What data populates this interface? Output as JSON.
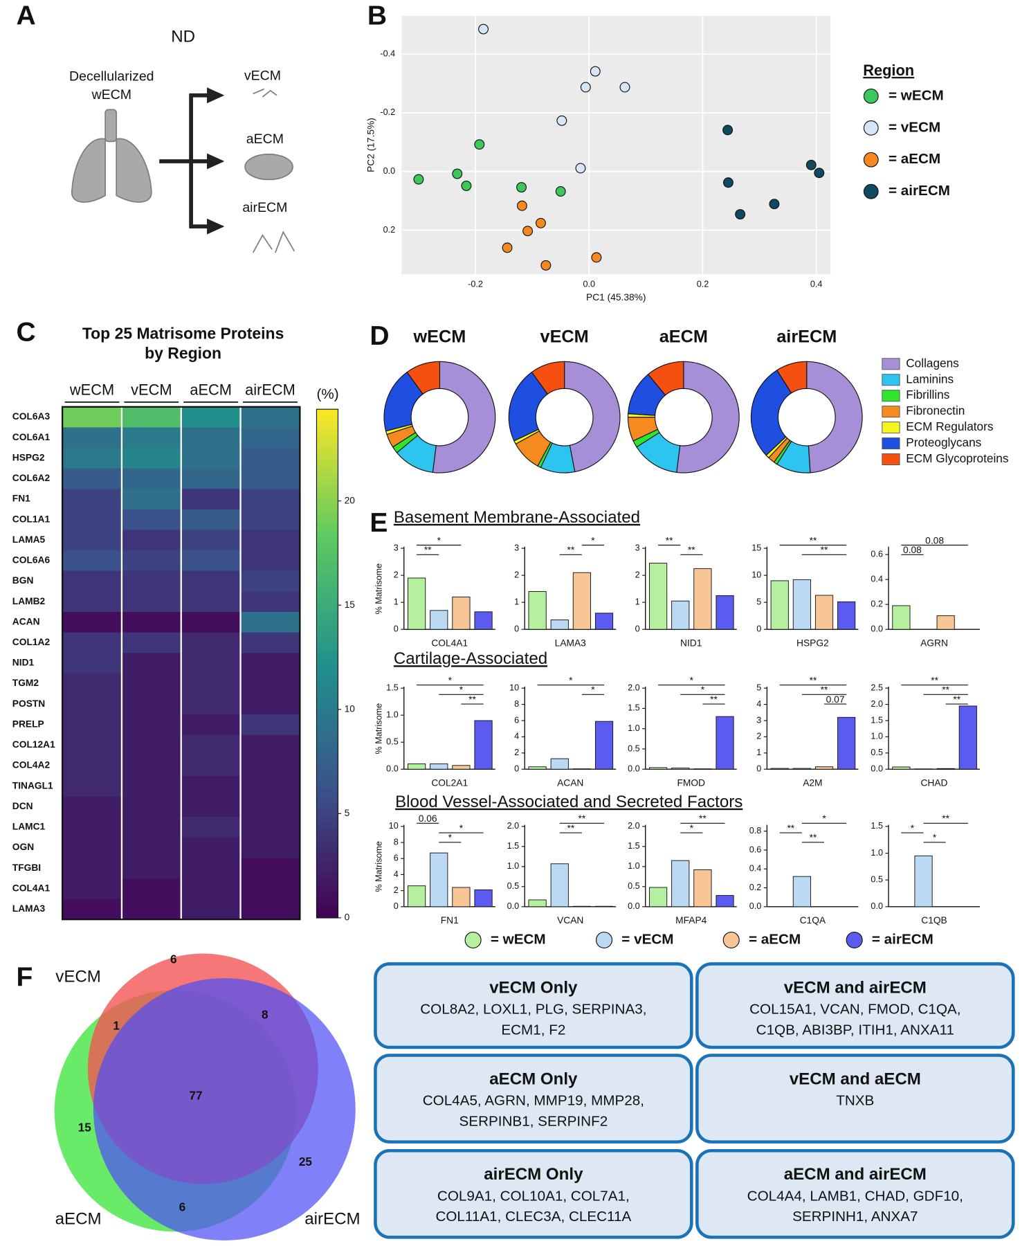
{
  "panel_labels": [
    "A",
    "B",
    "C",
    "D",
    "E",
    "F"
  ],
  "schematic": {
    "condition": "ND",
    "source": [
      "Decellularized",
      "wECM"
    ],
    "targets": [
      "vECM",
      "aECM",
      "airECM"
    ]
  },
  "chart_data": [
    {
      "type": "scatter",
      "xlabel": "PC1 (45.38%)",
      "ylabel": "PC2 (17.5%)",
      "xlim": [
        -0.33,
        0.425
      ],
      "ylim": [
        -0.53,
        0.35
      ],
      "yreverse": true,
      "xticks": [
        -0.2,
        {
          "value": 0,
          "label": "0.0"
        },
        0.2,
        0.4
      ],
      "yticks": [
        -0.4,
        -0.2,
        {
          "value": 0,
          "label": "0.0"
        },
        0.2
      ],
      "grid": true,
      "legend_title": "Region",
      "series": [
        {
          "name": "= wECM",
          "color": "#3cc85a",
          "x": [
            -0.193,
            -0.3,
            -0.232,
            -0.216,
            -0.119,
            -0.05
          ],
          "y": [
            -0.092,
            0.027,
            0.008,
            0.049,
            0.054,
            0.068
          ]
        },
        {
          "name": "= vECM",
          "color": "#d4e6f8",
          "x": [
            -0.186,
            0.011,
            -0.006,
            0.063,
            -0.048,
            -0.015
          ],
          "y": [
            -0.485,
            -0.341,
            -0.287,
            -0.287,
            -0.173,
            -0.011
          ]
        },
        {
          "name": "= aECM",
          "color": "#f5891f",
          "x": [
            -0.118,
            -0.085,
            -0.108,
            -0.144,
            -0.076,
            0.013
          ],
          "y": [
            0.117,
            0.176,
            0.203,
            0.26,
            0.32,
            0.293
          ]
        },
        {
          "name": "= airECM",
          "color": "#0f4a60",
          "x": [
            0.244,
            0.245,
            0.266,
            0.326,
            0.391,
            0.405
          ],
          "y": [
            -0.141,
            0.038,
            0.146,
            0.111,
            -0.022,
            0.005
          ]
        }
      ]
    },
    {
      "type": "heatmap",
      "title": [
        "Top 25 Matrisome Proteins",
        "by Region"
      ],
      "columns": [
        "wECM",
        "vECM",
        "aECM",
        "airECM"
      ],
      "rows": [
        "COL6A3",
        "COL6A1",
        "HSPG2",
        "COL6A2",
        "FN1",
        "COL1A1",
        "LAMA5",
        "COL6A6",
        "BGN",
        "LAMB2",
        "ACAN",
        "COL1A2",
        "NID1",
        "TGM2",
        "POSTN",
        "PRELP",
        "COL12A1",
        "COL4A2",
        "TINAGL1",
        "DCN",
        "LAMC1",
        "OGN",
        "TFGBI",
        "COL4A1",
        "LAMA3"
      ],
      "values": [
        [
          19,
          17,
          12,
          9
        ],
        [
          9,
          10,
          9,
          8
        ],
        [
          10,
          11,
          9,
          7
        ],
        [
          7,
          8,
          8,
          7
        ],
        [
          5,
          9,
          4,
          5
        ],
        [
          5,
          6,
          7,
          5
        ],
        [
          5,
          4,
          5,
          4
        ],
        [
          6,
          5,
          6,
          4
        ],
        [
          4,
          4,
          4,
          5
        ],
        [
          4,
          4,
          4,
          4
        ],
        [
          1,
          1,
          1,
          9
        ],
        [
          4,
          4,
          3,
          4
        ],
        [
          4,
          2,
          3,
          2
        ],
        [
          3,
          2,
          3,
          2
        ],
        [
          3,
          2,
          3,
          2
        ],
        [
          3,
          2,
          2,
          4
        ],
        [
          3,
          2,
          3,
          2
        ],
        [
          3,
          2,
          3,
          2
        ],
        [
          3,
          2,
          2,
          2
        ],
        [
          2,
          2,
          2,
          2
        ],
        [
          2,
          2,
          3,
          2
        ],
        [
          2,
          2,
          2,
          2
        ],
        [
          2,
          2,
          2,
          1
        ],
        [
          2,
          1,
          2,
          1
        ],
        [
          1,
          1,
          2,
          1
        ]
      ],
      "clim": [
        0,
        24.4
      ],
      "cticks": [
        0,
        5,
        10,
        15,
        20
      ],
      "colorbar_label": "(%)"
    },
    {
      "type": "donut",
      "categories": [
        "Collagens",
        "Laminins",
        "Fibrillins",
        "Fibronectin",
        "ECM Regulators",
        "Proteoglycans",
        "ECM Glycoproteins"
      ],
      "colors": [
        "#a68fd6",
        "#2ec4f0",
        "#2ee62e",
        "#f58a1f",
        "#f5f51f",
        "#1f4fe0",
        "#f5500f"
      ],
      "series": [
        {
          "name": "wECM",
          "values": [
            52,
            12,
            2,
            4,
            1,
            19,
            10
          ]
        },
        {
          "name": "vECM",
          "values": [
            47,
            10,
            1,
            9,
            1,
            22,
            10
          ]
        },
        {
          "name": "aECM",
          "values": [
            52,
            14,
            2,
            7,
            1,
            13,
            11
          ]
        },
        {
          "name": "airECM",
          "values": [
            49,
            10,
            1,
            2,
            1,
            28,
            9
          ]
        }
      ]
    },
    {
      "type": "bar",
      "ylabel": "% Matrisome",
      "xlabel": "COL4A1",
      "values": [
        1.9,
        0.7,
        1.2,
        0.65
      ],
      "ylim": [
        0,
        3
      ],
      "yticks": [
        0,
        1,
        2,
        3
      ],
      "annotations": [
        {
          "text": "*",
          "between": [
            0,
            2
          ]
        },
        {
          "text": "**",
          "between": [
            0,
            1
          ]
        }
      ]
    },
    {
      "type": "bar",
      "xlabel": "LAMA3",
      "values": [
        1.4,
        0.35,
        2.1,
        0.6
      ],
      "ylim": [
        0,
        3
      ],
      "yticks": [
        0,
        1,
        2,
        3
      ],
      "annotations": [
        {
          "text": "*",
          "between": [
            2,
            3
          ]
        },
        {
          "text": "**",
          "between": [
            1,
            2
          ]
        }
      ]
    },
    {
      "type": "bar",
      "xlabel": "NID1",
      "values": [
        2.45,
        1.05,
        2.25,
        1.25
      ],
      "ylim": [
        0,
        3
      ],
      "yticks": [
        0,
        1,
        2,
        3
      ],
      "annotations": [
        {
          "text": "**",
          "between": [
            0,
            1
          ]
        },
        {
          "text": "**",
          "between": [
            1,
            2
          ]
        }
      ]
    },
    {
      "type": "bar",
      "xlabel": "HSPG2",
      "values": [
        9,
        9.2,
        6.3,
        5.1
      ],
      "ylim": [
        0,
        15
      ],
      "yticks": [
        0,
        5,
        10,
        15
      ],
      "annotations": [
        {
          "text": "**",
          "between": [
            0,
            3
          ]
        },
        {
          "text": "**",
          "between": [
            1,
            3
          ]
        }
      ]
    },
    {
      "type": "bar",
      "xlabel": "AGRN",
      "values": [
        0.19,
        0,
        0.11,
        0
      ],
      "ylim": [
        0,
        0.65
      ],
      "yticks": [
        {
          "value": 0,
          "label": "0.0"
        },
        0.2,
        0.4,
        0.6
      ],
      "annotations": [
        {
          "text": "0.08",
          "between": [
            0,
            3
          ]
        },
        {
          "text": "0.08",
          "between": [
            0,
            1
          ]
        }
      ]
    },
    {
      "type": "bar",
      "ylabel": "% Matrisome",
      "xlabel": "COL2A1",
      "values": [
        0.1,
        0.1,
        0.07,
        0.9
      ],
      "ylim": [
        0,
        1.5
      ],
      "yticks": [
        {
          "value": 0,
          "label": "0.0"
        },
        0.5,
        {
          "value": 1,
          "label": "1.0"
        },
        1.5
      ],
      "annotations": [
        {
          "text": "*",
          "between": [
            0,
            3
          ]
        },
        {
          "text": "*",
          "between": [
            1,
            3
          ]
        },
        {
          "text": "**",
          "between": [
            2,
            3
          ]
        }
      ]
    },
    {
      "type": "bar",
      "xlabel": "ACAN",
      "values": [
        0.3,
        1.3,
        0.05,
        5.9
      ],
      "ylim": [
        0,
        10
      ],
      "yticks": [
        0,
        2,
        4,
        6,
        8,
        10
      ],
      "annotations": [
        {
          "text": "*",
          "between": [
            0,
            3
          ]
        },
        {
          "text": "*",
          "between": [
            2,
            3
          ]
        }
      ]
    },
    {
      "type": "bar",
      "xlabel": "FMOD",
      "values": [
        0.04,
        0.03,
        0.01,
        1.3
      ],
      "ylim": [
        0,
        2
      ],
      "yticks": [
        {
          "value": 0,
          "label": "0.0"
        },
        0.5,
        {
          "value": 1,
          "label": "1.0"
        },
        1.5,
        {
          "value": 2,
          "label": "2.0"
        }
      ],
      "annotations": [
        {
          "text": "*",
          "between": [
            0,
            3
          ]
        },
        {
          "text": "*",
          "between": [
            1,
            3
          ]
        },
        {
          "text": "**",
          "between": [
            2,
            3
          ]
        }
      ]
    },
    {
      "type": "bar",
      "xlabel": "A2M",
      "values": [
        0.05,
        0.05,
        0.15,
        3.2
      ],
      "ylim": [
        0,
        5
      ],
      "yticks": [
        0,
        1,
        2,
        3,
        4,
        5
      ],
      "annotations": [
        {
          "text": "**",
          "between": [
            0,
            3
          ]
        },
        {
          "text": "**",
          "between": [
            1,
            3
          ]
        },
        {
          "text": "0.07",
          "between": [
            2,
            3
          ]
        }
      ]
    },
    {
      "type": "bar",
      "xlabel": "CHAD",
      "values": [
        0.07,
        0.01,
        0.02,
        1.95
      ],
      "ylim": [
        0,
        2.5
      ],
      "yticks": [
        {
          "value": 0,
          "label": "0.0"
        },
        0.5,
        {
          "value": 1,
          "label": "1.0"
        },
        1.5,
        {
          "value": 2,
          "label": "2.0"
        },
        2.5
      ],
      "annotations": [
        {
          "text": "**",
          "between": [
            0,
            3
          ]
        },
        {
          "text": "**",
          "between": [
            1,
            3
          ]
        },
        {
          "text": "**",
          "between": [
            2,
            3
          ]
        }
      ]
    },
    {
      "type": "bar",
      "ylabel": "% Matrisome",
      "xlabel": "FN1",
      "values": [
        2.6,
        6.7,
        2.4,
        2.1
      ],
      "ylim": [
        0,
        10
      ],
      "yticks": [
        0,
        2,
        4,
        6,
        8,
        10
      ],
      "annotations": [
        {
          "text": "0.06",
          "between": [
            0,
            1
          ]
        },
        {
          "text": "*",
          "between": [
            1,
            3
          ]
        },
        {
          "text": "*",
          "between": [
            1,
            2
          ]
        }
      ]
    },
    {
      "type": "bar",
      "xlabel": "VCAN",
      "values": [
        0.17,
        1.07,
        0.01,
        0.01
      ],
      "ylim": [
        0,
        2
      ],
      "yticks": [
        {
          "value": 0,
          "label": "0.0"
        },
        0.5,
        {
          "value": 1,
          "label": "1.0"
        },
        1.5,
        {
          "value": 2,
          "label": "2.0"
        }
      ],
      "annotations": [
        {
          "text": "**",
          "between": [
            1,
            3
          ]
        },
        {
          "text": "**",
          "between": [
            1,
            2
          ]
        }
      ]
    },
    {
      "type": "bar",
      "xlabel": "MFAP4",
      "values": [
        0.48,
        1.15,
        0.92,
        0.28
      ],
      "ylim": [
        0,
        2
      ],
      "yticks": [
        {
          "value": 0,
          "label": "0.0"
        },
        0.5,
        {
          "value": 1,
          "label": "1.0"
        },
        1.5,
        {
          "value": 2,
          "label": "2.0"
        }
      ],
      "annotations": [
        {
          "text": "**",
          "between": [
            1,
            3
          ]
        },
        {
          "text": "*",
          "between": [
            1,
            2
          ]
        }
      ]
    },
    {
      "type": "bar",
      "xlabel": "C1QA",
      "values": [
        0,
        0.32,
        0,
        0
      ],
      "ylim": [
        0,
        0.85
      ],
      "yticks": [
        {
          "value": 0,
          "label": "0.0"
        },
        0.2,
        0.4,
        0.6,
        0.8
      ],
      "annotations": [
        {
          "text": "*",
          "between": [
            1,
            3
          ]
        },
        {
          "text": "**",
          "between": [
            0,
            1
          ]
        },
        {
          "text": "**",
          "between": [
            1,
            2
          ]
        }
      ]
    },
    {
      "type": "bar",
      "xlabel": "C1QB",
      "values": [
        0,
        0.95,
        0,
        0
      ],
      "ylim": [
        0,
        1.5
      ],
      "yticks": [
        {
          "value": 0,
          "label": "0.0"
        },
        0.5,
        {
          "value": 1,
          "label": "1.0"
        },
        1.5
      ],
      "annotations": [
        {
          "text": "**",
          "between": [
            1,
            3
          ]
        },
        {
          "text": "*",
          "between": [
            0,
            1
          ]
        },
        {
          "text": "*",
          "between": [
            1,
            2
          ]
        }
      ]
    }
  ],
  "panel_E": {
    "section_titles": [
      "Basement Membrane-Associated",
      "Cartilage-Associated",
      "Blood Vessel-Associated and Secreted Factors"
    ],
    "legend": [
      {
        "name": "= wECM",
        "color": "#b4f0a0"
      },
      {
        "name": "= vECM",
        "color": "#bcd9f4"
      },
      {
        "name": "= aECM",
        "color": "#f8c696"
      },
      {
        "name": "= airECM",
        "color": "#5b5bf0"
      }
    ]
  },
  "venn": {
    "sets": [
      "vECM",
      "aECM",
      "airECM"
    ],
    "counts": [
      6,
      8,
      1,
      77,
      15,
      25,
      6
    ]
  },
  "gene_boxes": [
    {
      "title": "vECM Only",
      "lines": [
        "COL8A2, LOXL1, PLG, SERPINA3,",
        "ECM1, F2"
      ]
    },
    {
      "title": "vECM and airECM",
      "lines": [
        "COL15A1, VCAN, FMOD, C1QA,",
        "C1QB, ABI3BP, ITIH1, ANXA11"
      ]
    },
    {
      "title": "aECM Only",
      "lines": [
        "COL4A5, AGRN, MMP19, MMP28,",
        "SERPINB1,  SERPINF2"
      ]
    },
    {
      "title": "vECM and aECM",
      "lines": [
        "TNXB"
      ]
    },
    {
      "title": "airECM Only",
      "lines": [
        "COL9A1, COL10A1, COL7A1,",
        "COL11A1, CLEC3A, CLEC11A"
      ]
    },
    {
      "title": "aECM and airECM",
      "lines": [
        "COL4A4, LAMB1, CHAD, GDF10,",
        "SERPINH1, ANXA7"
      ]
    }
  ]
}
